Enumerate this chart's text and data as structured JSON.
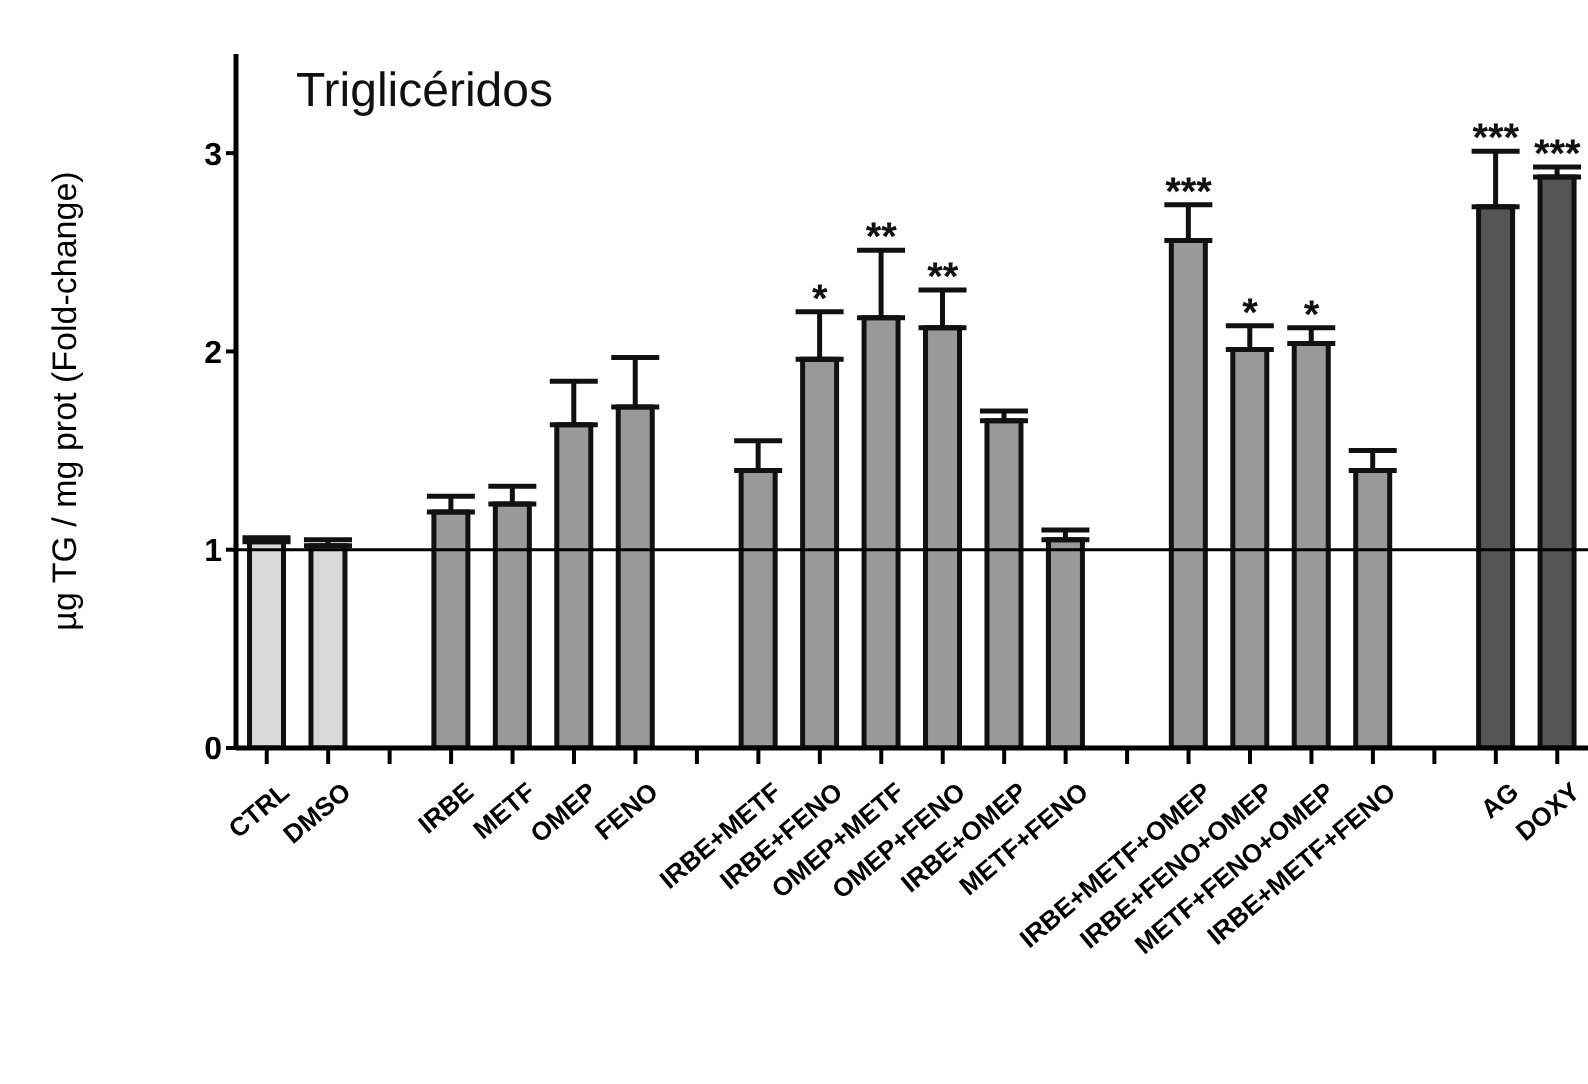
{
  "chart_data": {
    "type": "bar",
    "title": "Triglicéridos",
    "ylabel": "µg TG / mg prot (Fold-change)",
    "categories": [
      "CTRL",
      "DMSO",
      null,
      "IRBE",
      "METF",
      "OMEP",
      "FENO",
      null,
      "IRBE+METF",
      "IRBE+FENO",
      "OMEP+METF",
      "OMEP+FENO",
      "IRBE+OMEP",
      "METF+FENO",
      null,
      "IRBE+METF+OMEP",
      "IRBE+FENO+OMEP",
      "METF+FENO+OMEP",
      "IRBE+METF+FENO",
      null,
      "AG",
      "DOXY"
    ],
    "values": [
      1.04,
      1.02,
      null,
      1.19,
      1.23,
      1.63,
      1.72,
      null,
      1.4,
      1.96,
      2.17,
      2.12,
      1.65,
      1.05,
      null,
      2.56,
      2.01,
      2.04,
      1.4,
      null,
      2.73,
      2.88
    ],
    "errors": [
      [
        1.04,
        1.06
      ],
      [
        1.02,
        1.05
      ],
      null,
      [
        1.19,
        1.27
      ],
      [
        1.23,
        1.32
      ],
      [
        1.63,
        1.85
      ],
      [
        1.72,
        1.97
      ],
      null,
      [
        1.4,
        1.55
      ],
      [
        1.96,
        2.2
      ],
      [
        2.17,
        2.51
      ],
      [
        2.12,
        2.31
      ],
      [
        1.65,
        1.7
      ],
      [
        1.05,
        1.1
      ],
      null,
      [
        2.56,
        2.74
      ],
      [
        2.01,
        2.13
      ],
      [
        2.04,
        2.12
      ],
      [
        1.4,
        1.5
      ],
      null,
      [
        2.73,
        3.01
      ],
      [
        2.88,
        2.93
      ]
    ],
    "colors": [
      "#d9d9d9",
      "#d9d9d9",
      null,
      "#999999",
      "#999999",
      "#999999",
      "#999999",
      null,
      "#999999",
      "#999999",
      "#999999",
      "#999999",
      "#999999",
      "#999999",
      null,
      "#999999",
      "#999999",
      "#999999",
      "#999999",
      null,
      "#555555",
      "#555555"
    ],
    "ylim": [
      0,
      3.5
    ],
    "yticks": [
      0,
      1,
      2,
      3
    ],
    "grid": false,
    "legend": false,
    "ref_lines": [
      {
        "axis": "y",
        "value": 1,
        "color": "#000000"
      }
    ],
    "annotations": [
      {
        "text": "*",
        "x": "IRBE+FENO",
        "y": 2.2
      },
      {
        "text": "**",
        "x": "OMEP+METF",
        "y": 2.51
      },
      {
        "text": "**",
        "x": "OMEP+FENO",
        "y": 2.31
      },
      {
        "text": "***",
        "x": "IRBE+METF+OMEP",
        "y": 2.74
      },
      {
        "text": "*",
        "x": "IRBE+FENO+OMEP",
        "y": 2.13
      },
      {
        "text": "*",
        "x": "METF+FENO+OMEP",
        "y": 2.12
      },
      {
        "text": "***",
        "x": "AG",
        "y": 3.01
      },
      {
        "text": "***",
        "x": "DOXY",
        "y": 2.93
      }
    ]
  }
}
